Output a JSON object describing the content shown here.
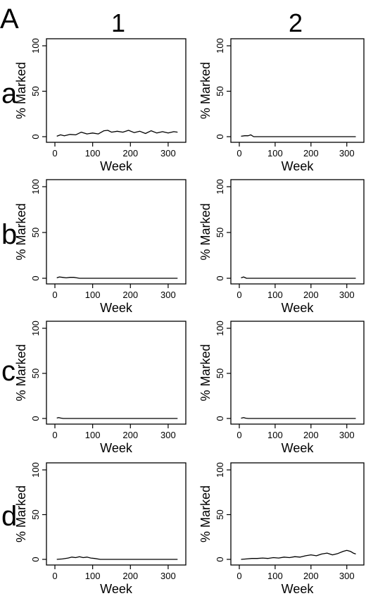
{
  "figure": {
    "panel_letter": "A",
    "column_labels": [
      "1",
      "2"
    ],
    "row_labels": [
      "a",
      "b",
      "c",
      "d"
    ]
  },
  "chart_data": [
    {
      "id": "a1",
      "row": "a",
      "col": "1",
      "type": "line",
      "xlabel": "Week",
      "ylabel": "% Marked",
      "xlim": [
        0,
        330
      ],
      "ylim": [
        0,
        100
      ],
      "xticks": [
        0,
        100,
        200,
        300
      ],
      "yticks": [
        0,
        50,
        100
      ],
      "x": [
        5,
        15,
        25,
        40,
        55,
        70,
        85,
        100,
        115,
        130,
        140,
        150,
        165,
        180,
        195,
        210,
        225,
        240,
        255,
        270,
        285,
        300,
        315,
        325
      ],
      "y": [
        0.5,
        2,
        1,
        2.5,
        2,
        5,
        3,
        4,
        3,
        6.5,
        7,
        5,
        6,
        5,
        7,
        4.5,
        6,
        3.5,
        6.5,
        4,
        5.5,
        4,
        5.5,
        5
      ]
    },
    {
      "id": "a2",
      "row": "a",
      "col": "2",
      "type": "line",
      "xlabel": "Week",
      "ylabel": "% Marked",
      "xlim": [
        0,
        330
      ],
      "ylim": [
        0,
        100
      ],
      "xticks": [
        0,
        100,
        200,
        300
      ],
      "yticks": [
        0,
        50,
        100
      ],
      "x": [
        5,
        15,
        25,
        32,
        40,
        60,
        100,
        200,
        325
      ],
      "y": [
        0.5,
        1,
        1,
        2,
        0,
        0,
        0,
        0,
        0
      ]
    },
    {
      "id": "b1",
      "row": "b",
      "col": "1",
      "type": "line",
      "xlabel": "Week",
      "ylabel": "% Marked",
      "xlim": [
        0,
        330
      ],
      "ylim": [
        0,
        100
      ],
      "xticks": [
        0,
        100,
        200,
        300
      ],
      "yticks": [
        0,
        50,
        100
      ],
      "x": [
        5,
        12,
        20,
        30,
        40,
        50,
        58,
        65,
        100,
        200,
        325
      ],
      "y": [
        0.5,
        1.5,
        1,
        0.5,
        1,
        1,
        0.5,
        0,
        0,
        0,
        0
      ]
    },
    {
      "id": "b2",
      "row": "b",
      "col": "2",
      "type": "line",
      "xlabel": "Week",
      "ylabel": "% Marked",
      "xlim": [
        0,
        330
      ],
      "ylim": [
        0,
        100
      ],
      "xticks": [
        0,
        100,
        200,
        300
      ],
      "yticks": [
        0,
        50,
        100
      ],
      "x": [
        5,
        12,
        20,
        30,
        100,
        200,
        325
      ],
      "y": [
        0.5,
        1.5,
        0,
        0,
        0,
        0,
        0
      ]
    },
    {
      "id": "c1",
      "row": "c",
      "col": "1",
      "type": "line",
      "xlabel": "Week",
      "ylabel": "% Marked",
      "xlim": [
        0,
        330
      ],
      "ylim": [
        0,
        100
      ],
      "xticks": [
        0,
        100,
        200,
        300
      ],
      "yticks": [
        0,
        50,
        100
      ],
      "x": [
        5,
        10,
        15,
        22,
        100,
        200,
        325
      ],
      "y": [
        0.5,
        1,
        0.5,
        0,
        0,
        0,
        0
      ]
    },
    {
      "id": "c2",
      "row": "c",
      "col": "2",
      "type": "line",
      "xlabel": "Week",
      "ylabel": "% Marked",
      "xlim": [
        0,
        330
      ],
      "ylim": [
        0,
        100
      ],
      "xticks": [
        0,
        100,
        200,
        300
      ],
      "yticks": [
        0,
        50,
        100
      ],
      "x": [
        5,
        12,
        18,
        25,
        100,
        200,
        325
      ],
      "y": [
        0.3,
        1,
        0.3,
        0,
        0,
        0,
        0
      ]
    },
    {
      "id": "d1",
      "row": "d",
      "col": "1",
      "type": "line",
      "xlabel": "Week",
      "ylabel": "% Marked",
      "xlim": [
        0,
        330
      ],
      "ylim": [
        0,
        100
      ],
      "xticks": [
        0,
        100,
        200,
        300
      ],
      "yticks": [
        0,
        50,
        100
      ],
      "x": [
        5,
        20,
        35,
        45,
        55,
        65,
        75,
        85,
        95,
        105,
        120,
        200,
        325
      ],
      "y": [
        0,
        0.5,
        1.5,
        2.5,
        2,
        3,
        2,
        2.5,
        1.5,
        1,
        0,
        0,
        0
      ]
    },
    {
      "id": "d2",
      "row": "d",
      "col": "2",
      "type": "line",
      "xlabel": "Week",
      "ylabel": "% Marked",
      "xlim": [
        0,
        330
      ],
      "ylim": [
        0,
        100
      ],
      "xticks": [
        0,
        100,
        200,
        300
      ],
      "yticks": [
        0,
        50,
        100
      ],
      "x": [
        5,
        20,
        35,
        50,
        65,
        80,
        95,
        110,
        125,
        140,
        155,
        170,
        185,
        200,
        215,
        230,
        245,
        260,
        275,
        290,
        300,
        310,
        318,
        325
      ],
      "y": [
        0,
        0.5,
        1,
        1,
        1.5,
        1,
        2,
        1.5,
        2.5,
        2,
        3,
        2.5,
        4,
        5,
        4,
        6,
        7,
        5,
        6.5,
        9,
        10,
        9,
        7,
        6
      ]
    }
  ]
}
